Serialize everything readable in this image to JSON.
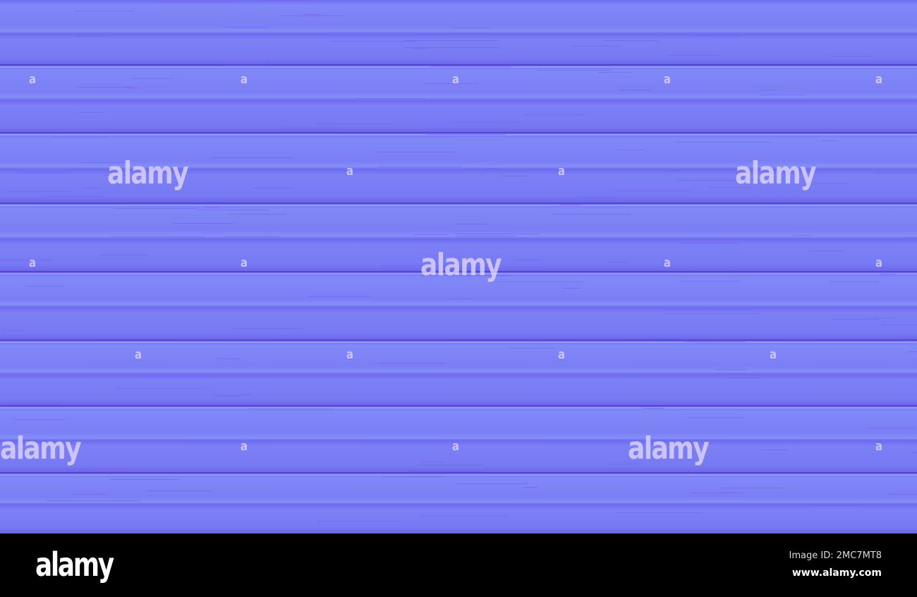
{
  "image": {
    "subject": "normal-map wood plank texture",
    "colors": {
      "base": "#7a7cf4",
      "seam": "#5a3fd8",
      "highlight": "#8fa6fb"
    }
  },
  "watermark": {
    "logo_text": "alamy",
    "small_mark": "a"
  },
  "footer": {
    "logo": "alamy",
    "image_id": "Image ID: 2MC7MT8",
    "url": "www.alamy.com"
  }
}
